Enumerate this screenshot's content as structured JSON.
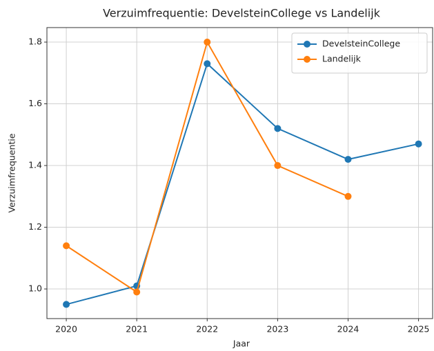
{
  "chart_data": {
    "type": "line",
    "title": "Verzuimfrequentie: DevelsteinCollege vs Landelijk",
    "xlabel": "Jaar",
    "ylabel": "Verzuimfrequentie",
    "x": [
      2020,
      2021,
      2022,
      2023,
      2024,
      2025
    ],
    "series": [
      {
        "name": "DevelsteinCollege",
        "color": "#1f77b4",
        "values": [
          0.95,
          1.01,
          1.73,
          1.52,
          1.42,
          1.47
        ]
      },
      {
        "name": "Landelijk",
        "color": "#ff7f0e",
        "values": [
          1.14,
          0.99,
          1.8,
          1.4,
          1.3,
          null
        ]
      }
    ],
    "xlim": [
      2019.725,
      2025.2
    ],
    "xticks": [
      2020,
      2021,
      2022,
      2023,
      2024,
      2025
    ],
    "ylim": [
      0.904,
      1.847
    ],
    "yticks": [
      {
        "value": 1.0,
        "label": "1.0"
      },
      1.2,
      1.4,
      1.6,
      1.8
    ],
    "grid": true,
    "legend": "upper right"
  }
}
